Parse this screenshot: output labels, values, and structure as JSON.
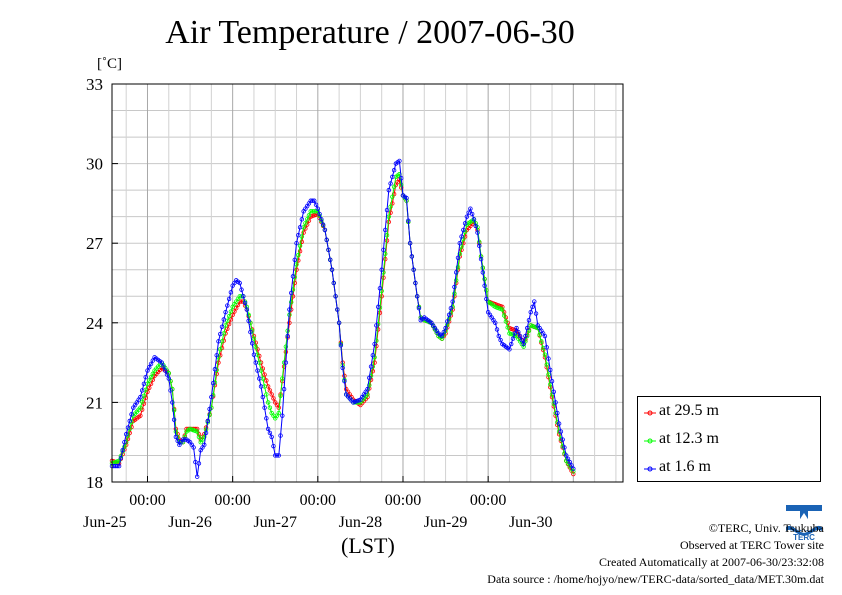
{
  "header": {
    "title": "Air Temperature / 2007-06-30"
  },
  "colors": {
    "s29": "#ff0000",
    "s12": "#00ff00",
    "s1": "#0000ff",
    "grid": "#bbbbbb"
  },
  "chart_data": {
    "type": "line",
    "title": "Air Temperature / 2007-06-30",
    "ylabel_unit": "[˚C]",
    "xlabel": "(LST)",
    "ylim": [
      18,
      33
    ],
    "y_ticks": [
      "18",
      "21",
      "24",
      "27",
      "30",
      "33"
    ],
    "xlim_hours": [
      -10,
      134
    ],
    "x_time_ticks": [
      "00:00",
      "00:00",
      "00:00",
      "00:00",
      "00:00"
    ],
    "x_date_labels": [
      "Jun-25",
      "Jun-26",
      "Jun-27",
      "Jun-28",
      "Jun-29",
      "Jun-30"
    ],
    "grid": true,
    "legend_position": "right",
    "series": [
      {
        "name": "at 29.5 m",
        "color": "#ff0000",
        "points": [
          [
            -10,
            18.8
          ],
          [
            -8,
            18.7
          ],
          [
            -6,
            19.4
          ],
          [
            -4,
            20.3
          ],
          [
            -2,
            20.5
          ],
          [
            0,
            21.4
          ],
          [
            2,
            22.0
          ],
          [
            4,
            22.3
          ],
          [
            6,
            22.1
          ],
          [
            7,
            21.5
          ],
          [
            8,
            20.0
          ],
          [
            9,
            19.6
          ],
          [
            10,
            19.5
          ],
          [
            11,
            20.0
          ],
          [
            12,
            20.0
          ],
          [
            14,
            20.0
          ],
          [
            15,
            19.6
          ],
          [
            16,
            19.8
          ],
          [
            18,
            20.8
          ],
          [
            20,
            22.5
          ],
          [
            22,
            23.6
          ],
          [
            24,
            24.3
          ],
          [
            26,
            24.8
          ],
          [
            27,
            24.8
          ],
          [
            28,
            24.5
          ],
          [
            30,
            23.5
          ],
          [
            32,
            22.5
          ],
          [
            34,
            21.6
          ],
          [
            35,
            21.3
          ],
          [
            36,
            21.0
          ],
          [
            37,
            20.8
          ],
          [
            38,
            21.8
          ],
          [
            40,
            24.0
          ],
          [
            42,
            26.0
          ],
          [
            44,
            27.4
          ],
          [
            46,
            28.0
          ],
          [
            48,
            28.1
          ],
          [
            50,
            27.5
          ],
          [
            52,
            26.0
          ],
          [
            54,
            24.0
          ],
          [
            55,
            22.5
          ],
          [
            56,
            21.5
          ],
          [
            58,
            21.1
          ],
          [
            60,
            20.9
          ],
          [
            62,
            21.2
          ],
          [
            64,
            22.5
          ],
          [
            66,
            25.0
          ],
          [
            68,
            27.8
          ],
          [
            70,
            29.2
          ],
          [
            71,
            29.4
          ],
          [
            72,
            28.8
          ],
          [
            73,
            28.6
          ],
          [
            74,
            27.0
          ],
          [
            76,
            25.0
          ],
          [
            77,
            24.2
          ],
          [
            78,
            24.1
          ],
          [
            80,
            24.0
          ],
          [
            82,
            23.5
          ],
          [
            83,
            23.4
          ],
          [
            84,
            23.6
          ],
          [
            86,
            24.5
          ],
          [
            88,
            26.5
          ],
          [
            90,
            27.5
          ],
          [
            92,
            27.8
          ],
          [
            93,
            27.5
          ],
          [
            94,
            26.5
          ],
          [
            96,
            24.8
          ],
          [
            98,
            24.7
          ],
          [
            100,
            24.6
          ],
          [
            102,
            23.8
          ],
          [
            104,
            23.7
          ],
          [
            106,
            23.2
          ],
          [
            108,
            23.9
          ],
          [
            110,
            23.8
          ],
          [
            112,
            22.7
          ],
          [
            114,
            21.2
          ],
          [
            116,
            19.8
          ],
          [
            118,
            18.8
          ],
          [
            120,
            18.3
          ]
        ]
      },
      {
        "name": "at 12.3 m",
        "color": "#00ff00",
        "points": [
          [
            -10,
            18.7
          ],
          [
            -8,
            18.8
          ],
          [
            -6,
            19.5
          ],
          [
            -4,
            20.5
          ],
          [
            -2,
            20.8
          ],
          [
            0,
            21.7
          ],
          [
            2,
            22.2
          ],
          [
            4,
            22.5
          ],
          [
            6,
            22.1
          ],
          [
            7,
            21.5
          ],
          [
            8,
            19.9
          ],
          [
            9,
            19.5
          ],
          [
            10,
            19.5
          ],
          [
            11,
            19.9
          ],
          [
            12,
            20.0
          ],
          [
            14,
            19.9
          ],
          [
            15,
            19.5
          ],
          [
            16,
            19.7
          ],
          [
            18,
            20.8
          ],
          [
            20,
            22.7
          ],
          [
            22,
            23.9
          ],
          [
            24,
            24.6
          ],
          [
            26,
            25.0
          ],
          [
            27,
            25.0
          ],
          [
            28,
            24.6
          ],
          [
            30,
            23.4
          ],
          [
            32,
            22.2
          ],
          [
            34,
            21.0
          ],
          [
            35,
            20.6
          ],
          [
            36,
            20.4
          ],
          [
            37,
            20.6
          ],
          [
            38,
            21.9
          ],
          [
            40,
            24.3
          ],
          [
            42,
            26.2
          ],
          [
            44,
            27.6
          ],
          [
            46,
            28.2
          ],
          [
            48,
            28.2
          ],
          [
            50,
            27.5
          ],
          [
            52,
            26.0
          ],
          [
            54,
            24.0
          ],
          [
            55,
            22.4
          ],
          [
            56,
            21.3
          ],
          [
            58,
            21.0
          ],
          [
            60,
            21.0
          ],
          [
            62,
            21.3
          ],
          [
            64,
            22.7
          ],
          [
            66,
            25.2
          ],
          [
            68,
            28.0
          ],
          [
            70,
            29.5
          ],
          [
            71,
            29.6
          ],
          [
            72,
            28.8
          ],
          [
            73,
            28.6
          ],
          [
            74,
            27.0
          ],
          [
            76,
            25.0
          ],
          [
            77,
            24.2
          ],
          [
            78,
            24.1
          ],
          [
            80,
            24.0
          ],
          [
            82,
            23.5
          ],
          [
            83,
            23.4
          ],
          [
            84,
            23.7
          ],
          [
            86,
            24.6
          ],
          [
            88,
            26.6
          ],
          [
            90,
            27.7
          ],
          [
            92,
            27.9
          ],
          [
            93,
            27.6
          ],
          [
            94,
            26.5
          ],
          [
            96,
            24.8
          ],
          [
            98,
            24.6
          ],
          [
            100,
            24.5
          ],
          [
            102,
            23.6
          ],
          [
            104,
            23.5
          ],
          [
            106,
            23.1
          ],
          [
            108,
            23.9
          ],
          [
            110,
            23.8
          ],
          [
            112,
            22.8
          ],
          [
            114,
            21.3
          ],
          [
            116,
            19.9
          ],
          [
            118,
            18.8
          ],
          [
            120,
            18.4
          ]
        ]
      },
      {
        "name": "at 1.6 m",
        "color": "#0000ff",
        "points": [
          [
            -10,
            18.6
          ],
          [
            -8,
            18.6
          ],
          [
            -6,
            19.8
          ],
          [
            -4,
            20.8
          ],
          [
            -2,
            21.2
          ],
          [
            0,
            22.2
          ],
          [
            2,
            22.7
          ],
          [
            4,
            22.5
          ],
          [
            6,
            21.9
          ],
          [
            7,
            21.0
          ],
          [
            8,
            19.7
          ],
          [
            9,
            19.4
          ],
          [
            10,
            19.6
          ],
          [
            11,
            19.6
          ],
          [
            12,
            19.5
          ],
          [
            13,
            19.3
          ],
          [
            14,
            18.2
          ],
          [
            15,
            19.2
          ],
          [
            16,
            19.4
          ],
          [
            18,
            21.2
          ],
          [
            20,
            23.3
          ],
          [
            22,
            24.4
          ],
          [
            24,
            25.4
          ],
          [
            25,
            25.6
          ],
          [
            26,
            25.5
          ],
          [
            27,
            25.0
          ],
          [
            28,
            24.5
          ],
          [
            30,
            22.8
          ],
          [
            32,
            21.6
          ],
          [
            34,
            20.0
          ],
          [
            35,
            19.7
          ],
          [
            36,
            19.0
          ],
          [
            37,
            19.0
          ],
          [
            38,
            20.5
          ],
          [
            40,
            24.5
          ],
          [
            42,
            27.0
          ],
          [
            44,
            28.2
          ],
          [
            46,
            28.6
          ],
          [
            47,
            28.6
          ],
          [
            48,
            28.3
          ],
          [
            50,
            27.5
          ],
          [
            52,
            26.0
          ],
          [
            54,
            24.0
          ],
          [
            55,
            22.3
          ],
          [
            56,
            21.3
          ],
          [
            58,
            21.0
          ],
          [
            60,
            21.1
          ],
          [
            62,
            21.5
          ],
          [
            64,
            23.2
          ],
          [
            66,
            26.0
          ],
          [
            68,
            29.0
          ],
          [
            70,
            30.0
          ],
          [
            71,
            30.1
          ],
          [
            72,
            28.8
          ],
          [
            73,
            28.7
          ],
          [
            74,
            27.0
          ],
          [
            76,
            25.0
          ],
          [
            77,
            24.1
          ],
          [
            78,
            24.2
          ],
          [
            80,
            24.0
          ],
          [
            82,
            23.6
          ],
          [
            83,
            23.5
          ],
          [
            84,
            23.8
          ],
          [
            86,
            24.8
          ],
          [
            88,
            27.0
          ],
          [
            90,
            28.0
          ],
          [
            91,
            28.3
          ],
          [
            92,
            27.9
          ],
          [
            93,
            27.4
          ],
          [
            94,
            26.4
          ],
          [
            96,
            24.4
          ],
          [
            98,
            24.0
          ],
          [
            99,
            23.5
          ],
          [
            100,
            23.2
          ],
          [
            102,
            23.0
          ],
          [
            104,
            23.8
          ],
          [
            106,
            23.2
          ],
          [
            108,
            24.4
          ],
          [
            109,
            24.8
          ],
          [
            110,
            23.9
          ],
          [
            112,
            23.5
          ],
          [
            114,
            21.8
          ],
          [
            116,
            20.2
          ],
          [
            118,
            19.0
          ],
          [
            120,
            18.5
          ]
        ]
      }
    ]
  },
  "legend": {
    "items": [
      {
        "label": "at 29.5 m",
        "color": "#ff0000"
      },
      {
        "label": "at 12.3 m",
        "color": "#00ff00"
      },
      {
        "label": "at 1.6 m",
        "color": "#0000ff"
      }
    ]
  },
  "credits": {
    "copyright": "©TERC, Univ. Tsukuba",
    "observed": "Observed at TERC Tower site",
    "created": "Created Automatically at 2007-06-30/23:32:08",
    "source": "Data source : /home/hojyo/new/TERC-data/sorted_data/MET.30m.dat"
  },
  "logo": {
    "text": "TERC",
    "icon": "terc-logo-icon",
    "color": "#1a63b5"
  }
}
